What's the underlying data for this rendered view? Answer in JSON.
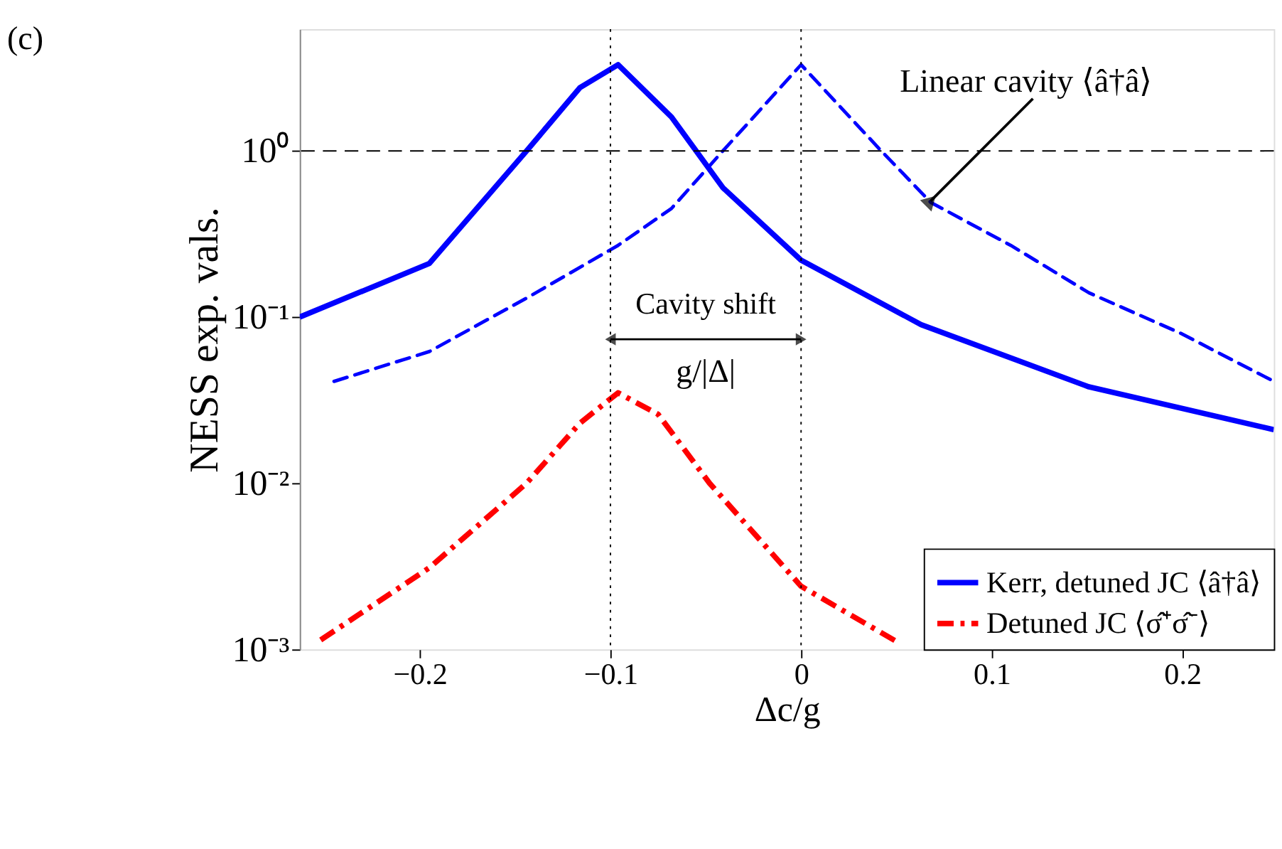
{
  "chart_data": {
    "type": "line",
    "title": "(c)",
    "xlabel": "Δc/g",
    "ylabel": "NESS exp. vals.",
    "xlim": [
      -0.263,
      0.248
    ],
    "ylim": [
      0.001,
      5.4
    ],
    "log": "y",
    "grid": false,
    "legend": "bottom right",
    "xticks": [
      -0.2,
      -0.1,
      0,
      0.1,
      0.2
    ],
    "yticks": [
      {
        "value": 1,
        "label": "10⁰"
      },
      {
        "value": 0.1,
        "label": "10⁻¹"
      },
      {
        "value": 0.01,
        "label": "10⁻²"
      },
      {
        "value": 0.001,
        "label": "10⁻³"
      }
    ],
    "series": [
      {
        "name": "Kerr, detuned JC ⟨â†â⟩",
        "color": "#0000ff",
        "line_style": "solid",
        "x": [
          -0.263,
          -0.195,
          -0.144,
          -0.116,
          -0.096,
          -0.068,
          -0.041,
          0,
          0.063,
          0.151,
          0.248
        ],
        "values": [
          0.1,
          0.21,
          1.0,
          2.4,
          3.3,
          1.6,
          0.6,
          0.22,
          0.09,
          0.038,
          0.021
        ]
      },
      {
        "color": "#0000ff",
        "line_style": "dashed",
        "x": [
          -0.245,
          -0.195,
          -0.144,
          -0.096,
          -0.068,
          -0.041,
          0,
          0.041,
          0.068,
          0.11,
          0.151,
          0.199,
          0.248
        ],
        "values": [
          0.041,
          0.062,
          0.13,
          0.27,
          0.45,
          1.0,
          3.3,
          1.03,
          0.49,
          0.27,
          0.14,
          0.08,
          0.041
        ]
      },
      {
        "name": "Detuned JC ⟨σ̂⁺σ̂⁻⟩",
        "color": "#ff0000",
        "line_style": "dashdot",
        "x": [
          -0.252,
          -0.195,
          -0.144,
          -0.116,
          -0.096,
          -0.075,
          -0.048,
          0,
          0.051
        ],
        "values": [
          0.00114,
          0.0031,
          0.01,
          0.023,
          0.035,
          0.026,
          0.01,
          0.0024,
          0.0011
        ]
      }
    ],
    "ref_lines": [
      {
        "axis": "y",
        "value": 1,
        "color": "#000000",
        "line_style": "dashed"
      },
      {
        "axis": "x",
        "value": -0.1,
        "color": "#000000",
        "line_style": "dotted"
      },
      {
        "axis": "x",
        "value": 0,
        "color": "#000000",
        "line_style": "dotted"
      }
    ],
    "annotations": [
      {
        "text": "Linear cavity ⟨â†â⟩",
        "x": 0.068,
        "y": 0.5
      },
      "Cavity shift",
      "g/|Δ|"
    ]
  }
}
